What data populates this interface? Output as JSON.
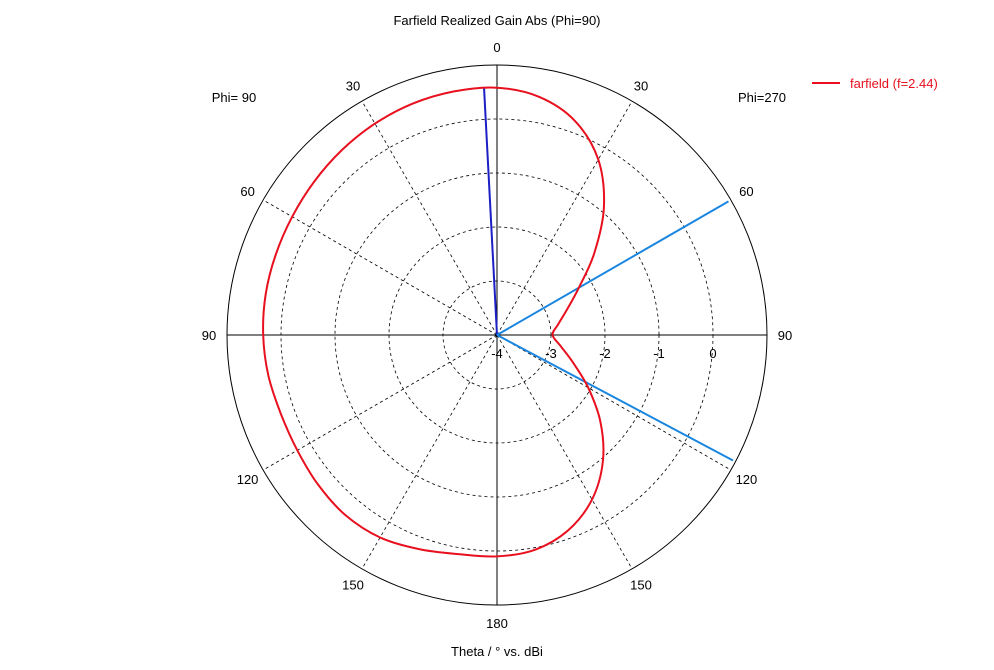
{
  "chart_data": {
    "type": "polar-line",
    "title": "Farfield Realized Gain Abs (Phi=90)",
    "xlabel": "Theta / ° vs. dBi",
    "left_half_label": "Phi= 90",
    "right_half_label": "Phi=270",
    "angle_tick_labels": [
      {
        "theta": 0,
        "label": "0"
      },
      {
        "theta": -30,
        "label": "30"
      },
      {
        "theta": 30,
        "label": "30"
      },
      {
        "theta": -60,
        "label": "60"
      },
      {
        "theta": 60,
        "label": "60"
      },
      {
        "theta": -90,
        "label": "90"
      },
      {
        "theta": 90,
        "label": "90"
      },
      {
        "theta": -120,
        "label": "120"
      },
      {
        "theta": 120,
        "label": "120"
      },
      {
        "theta": -150,
        "label": "150"
      },
      {
        "theta": 150,
        "label": "150"
      },
      {
        "theta": 180,
        "label": "180"
      }
    ],
    "radial_ticks": [
      -4,
      -3,
      -2,
      -1,
      0
    ],
    "radial_tick_labels": [
      "-4",
      "-3",
      "-2",
      "-1",
      "0"
    ],
    "r_range": [
      -4,
      1
    ],
    "grid": true,
    "legend": {
      "placement": "top-right",
      "entries": [
        "farfield (f=2.44)"
      ]
    },
    "series": [
      {
        "name": "farfield (f=2.44)",
        "color": "#e8101e",
        "points": [
          {
            "theta": 0,
            "r": 0.58
          },
          {
            "theta": 10,
            "r": 0.48
          },
          {
            "theta": 20,
            "r": 0.22
          },
          {
            "theta": 30,
            "r": -0.25
          },
          {
            "theta": 40,
            "r": -0.92
          },
          {
            "theta": 50,
            "r": -1.65
          },
          {
            "theta": 60,
            "r": -2.25
          },
          {
            "theta": 70,
            "r": -2.62
          },
          {
            "theta": 80,
            "r": -2.85
          },
          {
            "theta": 90,
            "r": -2.97
          },
          {
            "theta": 100,
            "r": -2.8
          },
          {
            "theta": 110,
            "r": -2.5
          },
          {
            "theta": 120,
            "r": -2.05
          },
          {
            "theta": 130,
            "r": -1.5
          },
          {
            "theta": 140,
            "r": -0.95
          },
          {
            "theta": 150,
            "r": -0.48
          },
          {
            "theta": 160,
            "r": -0.15
          },
          {
            "theta": 170,
            "r": 0.04
          },
          {
            "theta": 180,
            "r": 0.1
          },
          {
            "theta": 190,
            "r": 0.12
          },
          {
            "theta": 200,
            "r": 0.22
          },
          {
            "theta": 210,
            "r": 0.33
          },
          {
            "theta": 220,
            "r": 0.36
          },
          {
            "theta": 230,
            "r": 0.32
          },
          {
            "theta": 240,
            "r": 0.27
          },
          {
            "theta": 250,
            "r": 0.26
          },
          {
            "theta": 260,
            "r": 0.3
          },
          {
            "theta": 270,
            "r": 0.33
          },
          {
            "theta": 280,
            "r": 0.35
          },
          {
            "theta": 290,
            "r": 0.36
          },
          {
            "theta": 300,
            "r": 0.38
          },
          {
            "theta": 310,
            "r": 0.42
          },
          {
            "theta": 320,
            "r": 0.47
          },
          {
            "theta": 330,
            "r": 0.52
          },
          {
            "theta": 340,
            "r": 0.56
          },
          {
            "theta": 350,
            "r": 0.58
          },
          {
            "theta": 360,
            "r": 0.58
          }
        ]
      }
    ],
    "markers": [
      {
        "kind": "main-lobe-direction",
        "theta": -3,
        "r": 0.58,
        "color": "#1b1fc4"
      },
      {
        "kind": "beam-edge",
        "theta": 60,
        "r": 0.95,
        "color": "#1a86e0"
      },
      {
        "kind": "beam-edge",
        "theta": 118,
        "r": 0.95,
        "color": "#1a86e0"
      }
    ]
  }
}
